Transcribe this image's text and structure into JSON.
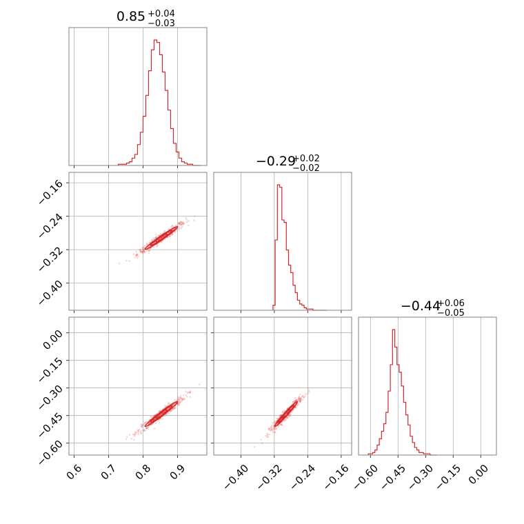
{
  "chart_data": {
    "type": "corner",
    "color": "#d62728",
    "grid": true,
    "parameters": [
      {
        "title_main": "0.85",
        "title_sup": "+0.04",
        "title_sub": "−0.03",
        "range": [
          0.585,
          0.985
        ],
        "ticks": [
          0.6,
          0.7,
          0.8,
          0.9
        ],
        "tick_labels": [
          "0.6",
          "0.7",
          "0.8",
          "0.9"
        ],
        "hist_bins": [
          0.728,
          0.736,
          0.744,
          0.752,
          0.76,
          0.768,
          0.776,
          0.784,
          0.792,
          0.8,
          0.808,
          0.816,
          0.824,
          0.832,
          0.84,
          0.848,
          0.856,
          0.864,
          0.872,
          0.88,
          0.888,
          0.896,
          0.904,
          0.912,
          0.92,
          0.928,
          0.936,
          0.944,
          0.952,
          0.96,
          0.968
        ],
        "hist_counts": [
          1,
          1,
          1,
          2,
          3,
          6,
          9,
          17,
          27,
          40,
          57,
          77,
          94,
          102,
          100,
          90,
          76,
          61,
          45,
          30,
          18,
          11,
          6,
          3,
          2,
          1,
          1,
          0,
          0,
          0
        ]
      },
      {
        "title_main": "−0.29",
        "title_sup": "+0.02",
        "title_sub": "−0.02",
        "range": [
          -0.465,
          -0.135
        ],
        "ticks": [
          -0.4,
          -0.32,
          -0.24,
          -0.16
        ],
        "tick_labels": [
          "−0.40",
          "−0.32",
          "−0.24",
          "−0.16"
        ],
        "hist_bins": [
          -0.3233,
          -0.318,
          -0.3127,
          -0.3073,
          -0.302,
          -0.2967,
          -0.2913,
          -0.286,
          -0.2807,
          -0.2753,
          -0.27,
          -0.2647,
          -0.2593,
          -0.254,
          -0.2487,
          -0.2433,
          -0.238,
          -0.2327,
          -0.2273,
          -0.222,
          -0.2167,
          -0.2113,
          -0.206,
          -0.2007,
          -0.1953
        ],
        "hist_counts": [
          4,
          56,
          100,
          98,
          72,
          70,
          48,
          36,
          30,
          20,
          14,
          8,
          5,
          4,
          2,
          1,
          1,
          1,
          0,
          0,
          0,
          0,
          0,
          0
        ]
      },
      {
        "title_main": "−0.44",
        "title_sup": "+0.06",
        "title_sub": "−0.05",
        "range": [
          -0.665,
          0.085
        ],
        "ticks": [
          -0.6,
          -0.45,
          -0.3,
          -0.15,
          0.0
        ],
        "tick_labels": [
          "−0.60",
          "−0.45",
          "−0.30",
          "−0.15",
          "0.00"
        ],
        "hist_bins": [
          -0.612,
          -0.6,
          -0.588,
          -0.576,
          -0.564,
          -0.552,
          -0.54,
          -0.528,
          -0.516,
          -0.504,
          -0.492,
          -0.48,
          -0.468,
          -0.456,
          -0.444,
          -0.432,
          -0.42,
          -0.408,
          -0.396,
          -0.384,
          -0.372,
          -0.36,
          -0.348,
          -0.336,
          -0.324,
          -0.312,
          -0.3,
          -0.288,
          -0.276,
          -0.264,
          -0.252,
          -0.24
        ],
        "hist_counts": [
          1,
          1,
          2,
          4,
          8,
          13,
          19,
          25,
          34,
          51,
          72,
          100,
          86,
          72,
          66,
          55,
          42,
          32,
          24,
          15,
          10,
          6,
          4,
          2,
          2,
          1,
          1,
          1,
          0,
          0,
          0
        ]
      }
    ]
  }
}
